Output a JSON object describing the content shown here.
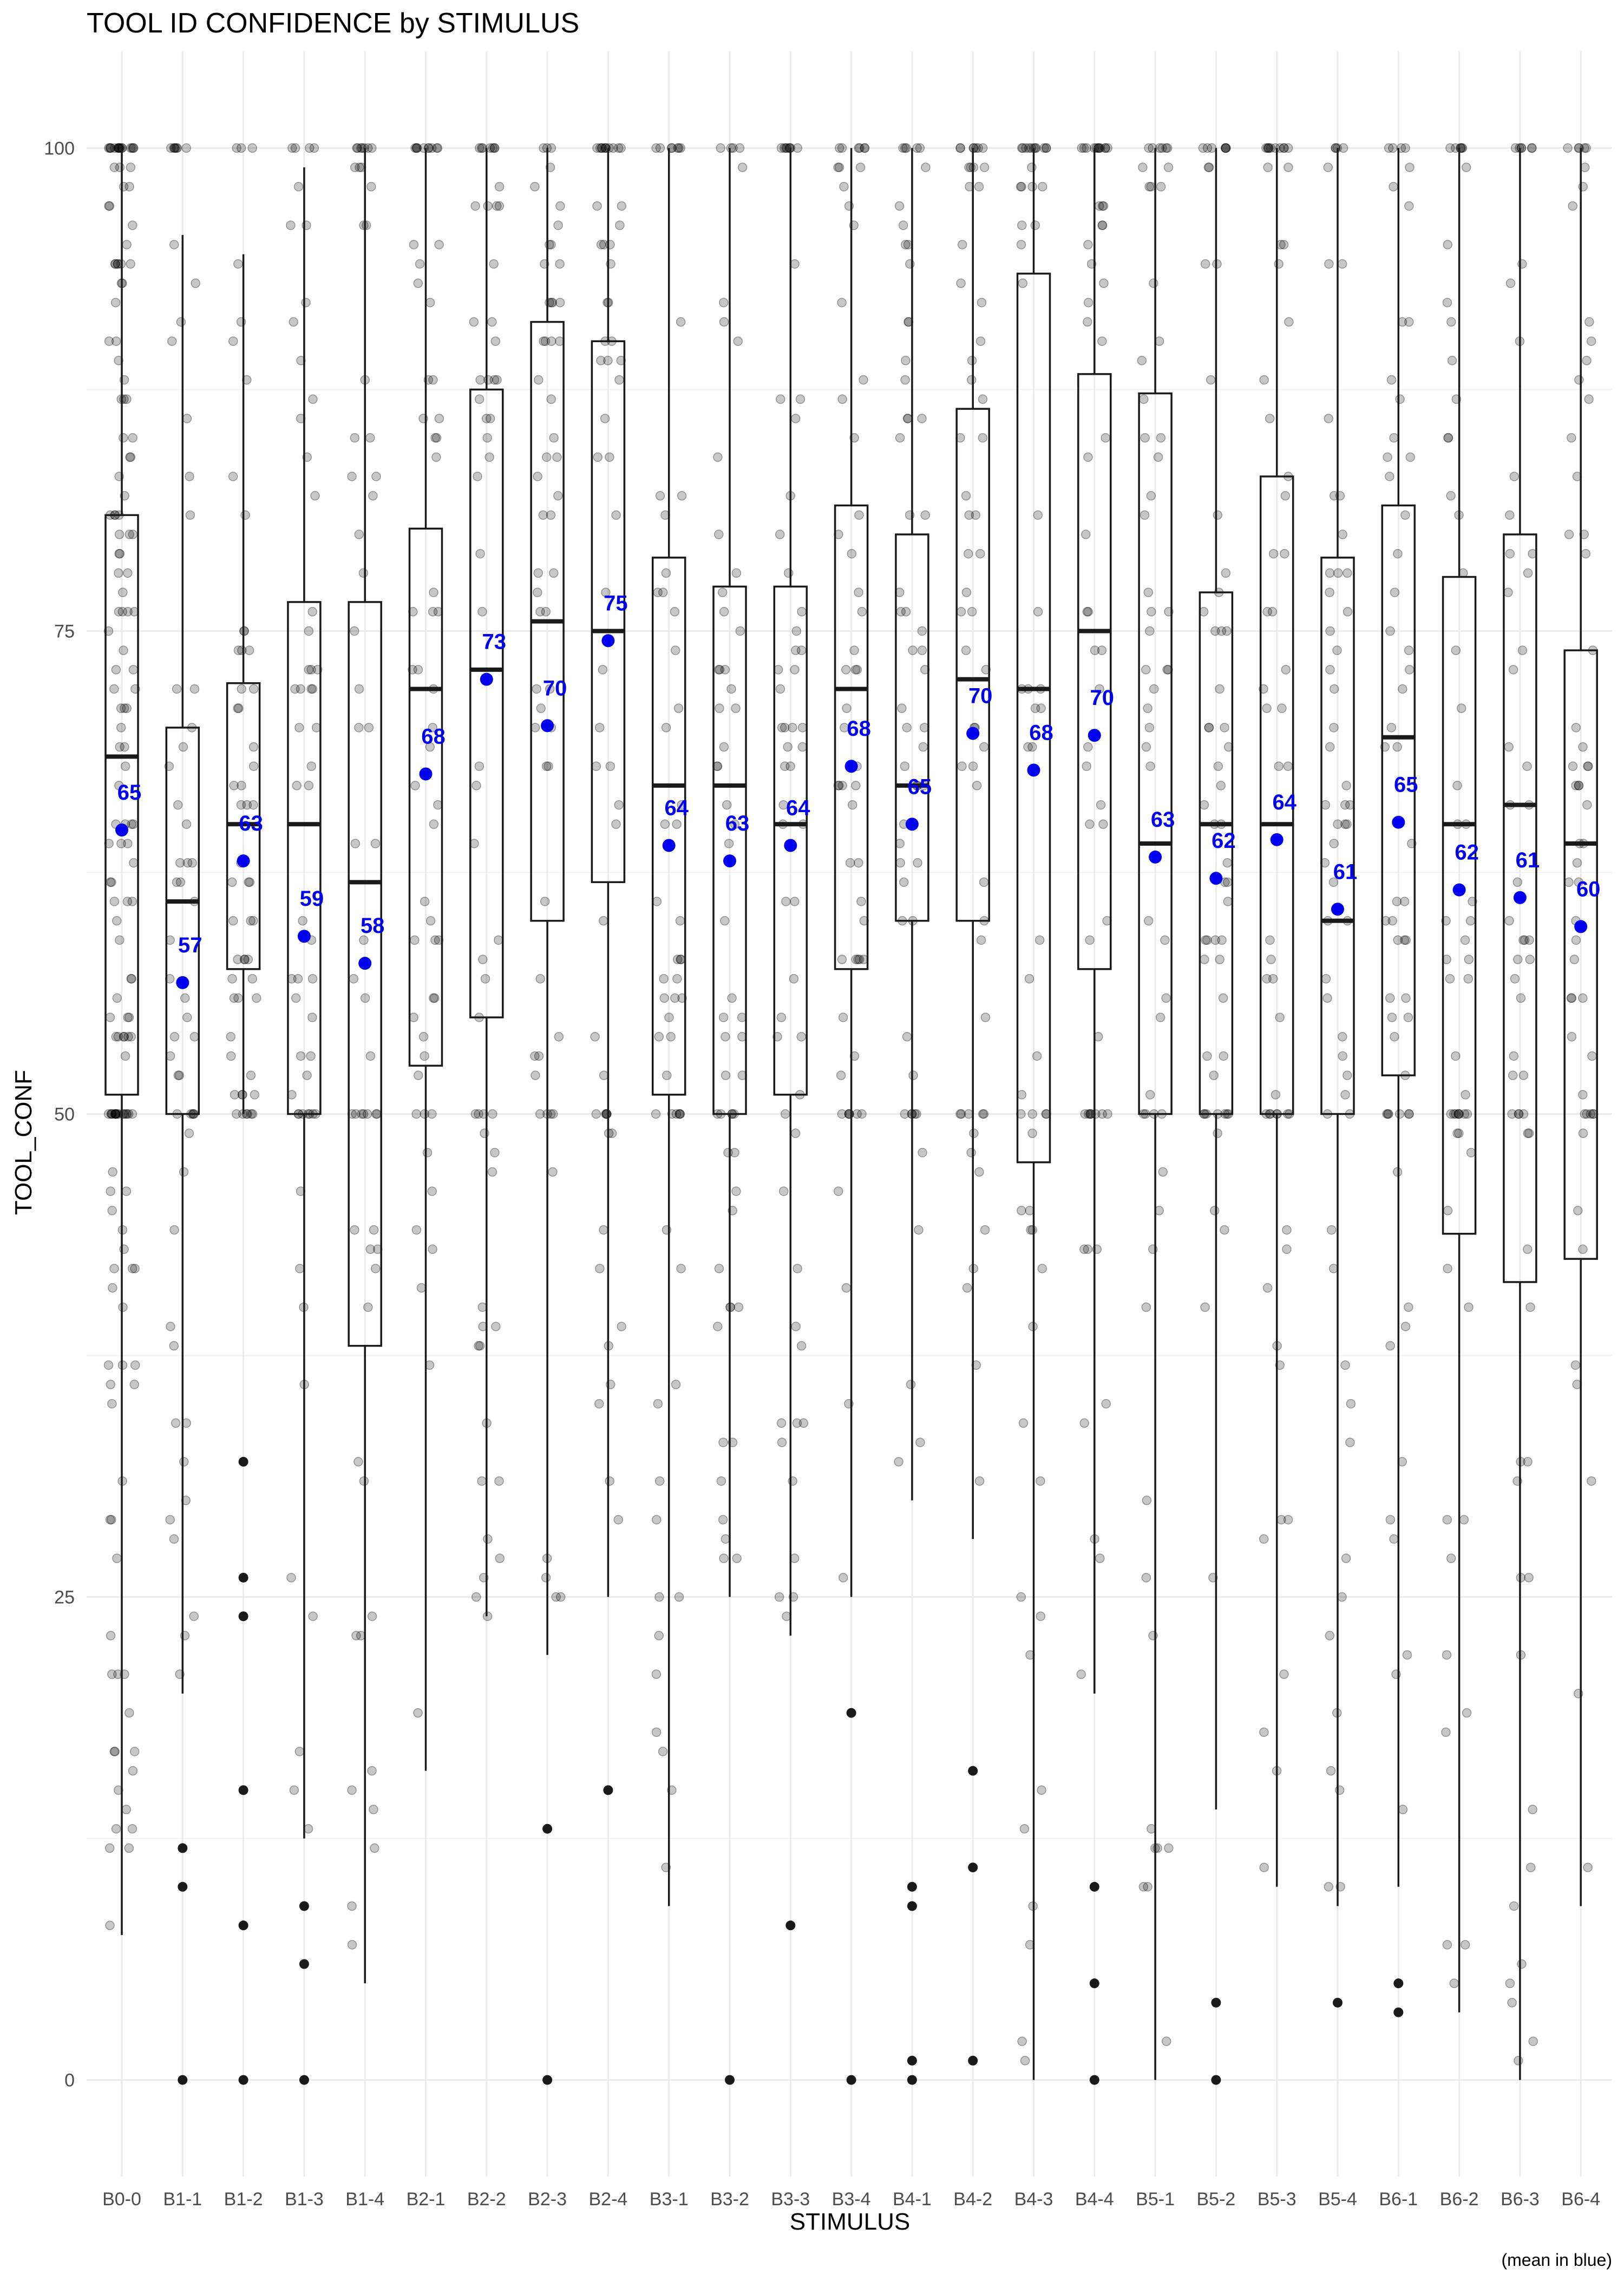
{
  "chart_data": {
    "type": "boxplot",
    "title": "TOOL ID CONFIDENCE by STIMULUS",
    "xlabel": "STIMULUS",
    "ylabel": "TOOL_CONF",
    "caption": "(mean in blue)",
    "ylim": [
      -5,
      105
    ],
    "yticks": [
      0,
      25,
      50,
      75,
      100
    ],
    "grid": true,
    "categories": [
      "B0-0",
      "B1-1",
      "B1-2",
      "B1-3",
      "B1-4",
      "B2-1",
      "B2-2",
      "B2-3",
      "B2-4",
      "B3-1",
      "B3-2",
      "B3-3",
      "B3-4",
      "B4-1",
      "B4-2",
      "B4-3",
      "B4-4",
      "B5-1",
      "B5-2",
      "B5-3",
      "B5-4",
      "B6-1",
      "B6-2",
      "B6-3",
      "B6-4"
    ],
    "q1": [
      51,
      50,
      57.5,
      50,
      38,
      52.5,
      55,
      60,
      62,
      51,
      50,
      51,
      57.5,
      60,
      60,
      47.5,
      57.5,
      50,
      50,
      50,
      50,
      52,
      43.8,
      41.3,
      42.5
    ],
    "median": [
      68.5,
      61,
      65,
      65,
      62,
      72,
      73,
      75.5,
      75,
      67,
      67,
      65,
      72,
      67,
      72.5,
      72,
      75,
      64,
      65,
      65,
      60,
      69.5,
      65,
      66,
      64
    ],
    "q3": [
      81,
      70,
      72.3,
      76.5,
      76.5,
      80.3,
      87.5,
      91,
      90,
      78.8,
      77.3,
      77.3,
      81.5,
      80,
      86.5,
      93.5,
      88.3,
      87.3,
      77,
      83,
      78.8,
      81.5,
      77.8,
      80,
      74
    ],
    "whisker_low": [
      7.5,
      20,
      50,
      12.5,
      5,
      16,
      24,
      22,
      25,
      9,
      25,
      23,
      25,
      30,
      28,
      0,
      20,
      0,
      14,
      10,
      9,
      10,
      3.5,
      0,
      9
    ],
    "whisker_high": [
      100,
      95.5,
      94.5,
      99,
      100,
      100,
      100,
      100,
      100,
      100,
      100,
      100,
      100,
      100,
      100,
      100,
      100,
      100,
      100,
      100,
      100,
      100,
      100,
      100,
      100
    ],
    "outliers": [
      [],
      [
        12,
        10,
        0
      ],
      [
        32,
        26,
        24,
        15,
        8,
        0
      ],
      [
        9,
        6,
        0
      ],
      [],
      [],
      [],
      [
        13,
        0
      ],
      [
        15
      ],
      [],
      [
        0
      ],
      [
        8
      ],
      [
        19,
        0
      ],
      [
        10,
        9,
        1,
        0
      ],
      [
        16,
        11,
        1
      ],
      [],
      [
        10,
        5,
        0
      ],
      [],
      [
        4,
        0
      ],
      [],
      [
        4
      ],
      [
        5,
        3.5
      ],
      [],
      [],
      []
    ],
    "mean_values": [
      64.7,
      56.8,
      63.1,
      59.2,
      57.8,
      67.6,
      72.5,
      70.1,
      74.5,
      63.9,
      63.1,
      63.9,
      68,
      65,
      69.7,
      67.8,
      69.6,
      63.3,
      62.2,
      64.2,
      60.6,
      65.1,
      61.6,
      61.2,
      59.7
    ],
    "mean_labels": [
      "65",
      "57",
      "63",
      "59",
      "58",
      "68",
      "73",
      "70",
      "75",
      "64",
      "63",
      "64",
      "68",
      "65",
      "70",
      "68",
      "70",
      "63",
      "62",
      "64",
      "61",
      "65",
      "62",
      "61",
      "60"
    ],
    "colors": {
      "mean": "#0000ee",
      "box": "#1a1a1a",
      "points": "#000000",
      "grid": "#ebebeb"
    }
  }
}
